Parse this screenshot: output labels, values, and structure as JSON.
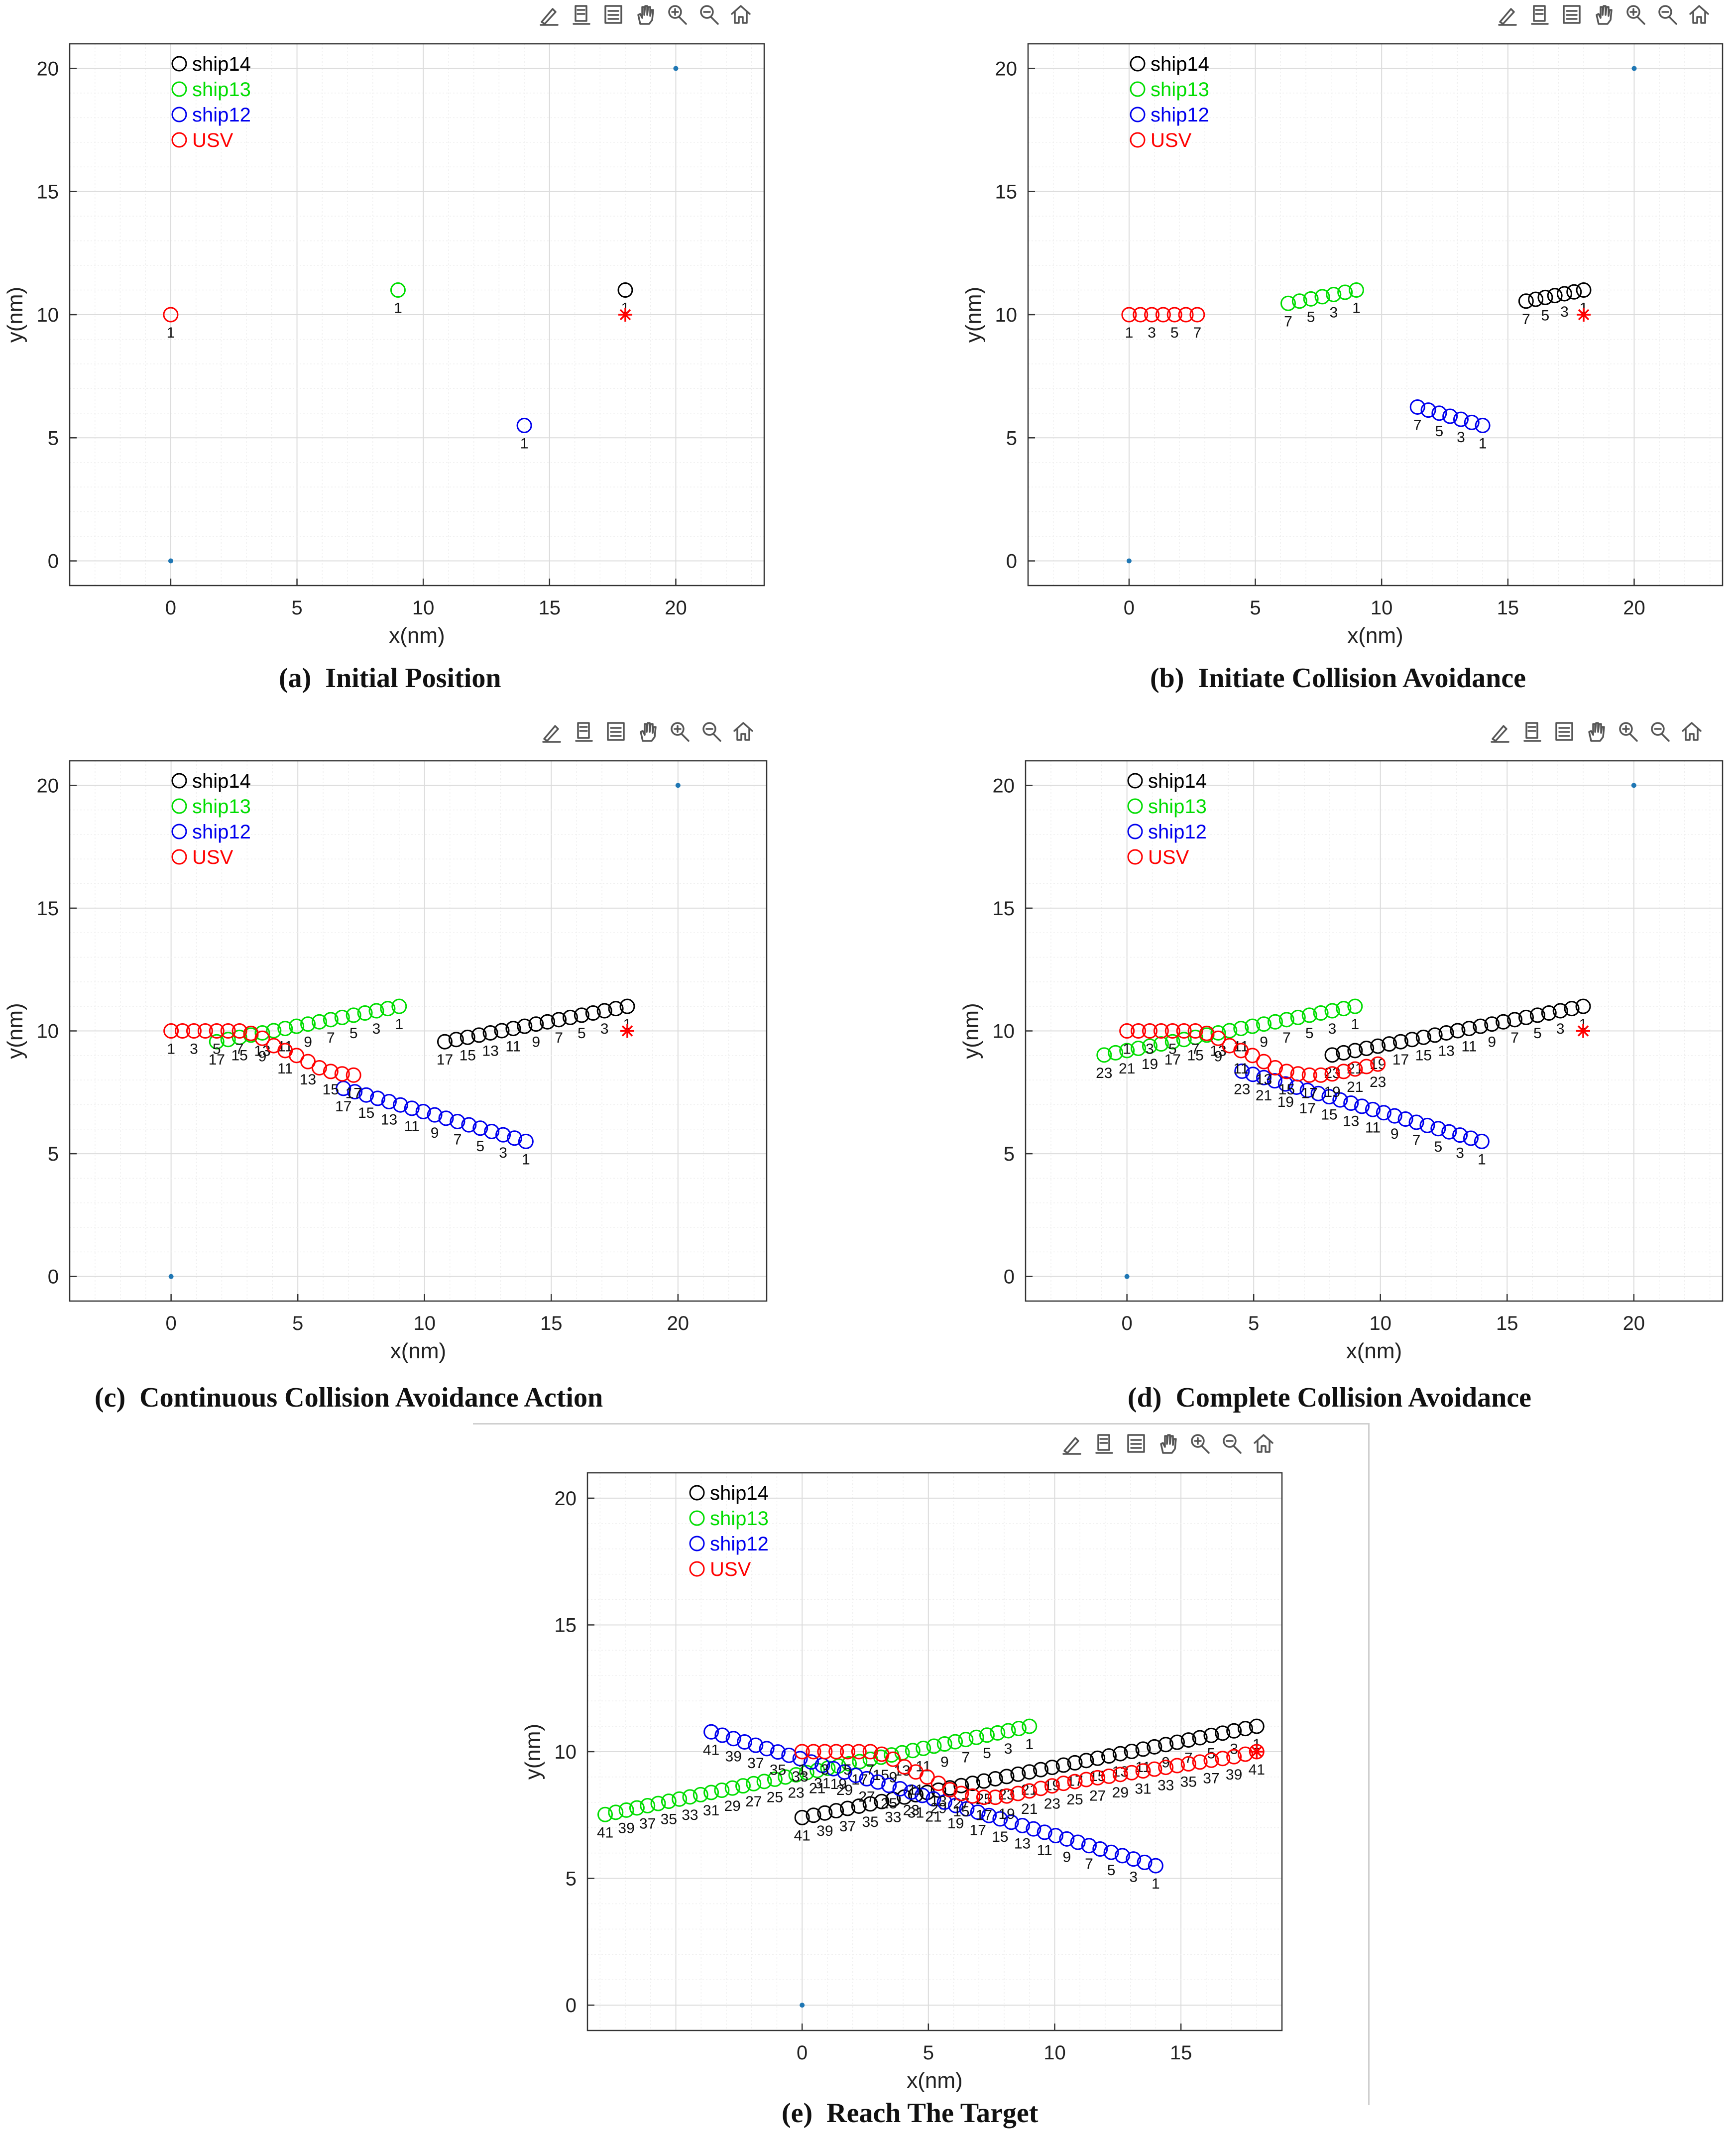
{
  "colors": {
    "ship14": "#000000",
    "ship13": "#00dd00",
    "ship12": "#0000ee",
    "USV": "#ff0000",
    "grid_major": "#dcdcdc",
    "grid_minor": "#efefef"
  },
  "toolbar_icons": [
    "brush-icon",
    "data-tip-icon",
    "legend-icon",
    "pan-icon",
    "zoom-in-icon",
    "zoom-out-icon",
    "home-icon"
  ],
  "captions": [
    {
      "label": "(a)",
      "title": "Initial Position"
    },
    {
      "label": "(b)",
      "title": "Initiate Collision Avoidance"
    },
    {
      "label": "(c)",
      "title": "Continuous Collision Avoidance Action"
    },
    {
      "label": "(d)",
      "title": "Complete Collision Avoidance"
    },
    {
      "label": "(e)",
      "title": "Reach The Target"
    }
  ],
  "chart_data": [
    {
      "type": "scatter",
      "title": "Initial Position",
      "xlabel": "x(nm)",
      "ylabel": "y(nm)",
      "xlim": [
        -4,
        23.5
      ],
      "ylim": [
        -1,
        21
      ],
      "xticks": [
        0,
        5,
        10,
        15,
        20
      ],
      "yticks": [
        0,
        5,
        10,
        15,
        20
      ],
      "grid": "on",
      "legend": [
        "ship14",
        "ship13",
        "ship12",
        "USV"
      ],
      "legend_location": "top-left",
      "start_point": [
        0,
        0
      ],
      "goal_point": [
        20,
        20
      ],
      "target_marker": [
        18,
        10
      ],
      "series": [
        {
          "name": "ship14",
          "start": [
            18,
            11
          ],
          "step": [
            -0.38,
            -0.05
          ],
          "count": 1
        },
        {
          "name": "ship13",
          "start": [
            9,
            11
          ],
          "step": [
            -0.38,
            -0.072
          ],
          "count": 1
        },
        {
          "name": "ship12",
          "start": [
            14,
            5.5
          ],
          "step": [
            -0.38,
            0.123
          ],
          "count": 1
        },
        {
          "name": "USV",
          "points": [
            [
              0,
              10
            ]
          ]
        }
      ]
    },
    {
      "type": "scatter",
      "title": "Initiate Collision Avoidance",
      "xlabel": "x(nm)",
      "ylabel": "y(nm)",
      "xlim": [
        -4,
        23.5
      ],
      "ylim": [
        -1,
        21
      ],
      "xticks": [
        0,
        5,
        10,
        15,
        20
      ],
      "yticks": [
        0,
        5,
        10,
        15,
        20
      ],
      "grid": "on",
      "legend": [
        "ship14",
        "ship13",
        "ship12",
        "USV"
      ],
      "legend_location": "top-left",
      "start_point": [
        0,
        0
      ],
      "goal_point": [
        20,
        20
      ],
      "target_marker": [
        18,
        10
      ],
      "series": [
        {
          "name": "ship14",
          "start": [
            18,
            11
          ],
          "step": [
            -0.38,
            -0.075
          ],
          "count": 7
        },
        {
          "name": "ship13",
          "start": [
            9,
            11
          ],
          "step": [
            -0.45,
            -0.09
          ],
          "count": 7
        },
        {
          "name": "ship12",
          "start": [
            14,
            5.5
          ],
          "step": [
            -0.43,
            0.125
          ],
          "count": 7
        },
        {
          "name": "USV",
          "points": [
            [
              0,
              10
            ],
            [
              0.45,
              10
            ],
            [
              0.9,
              10
            ],
            [
              1.35,
              10
            ],
            [
              1.8,
              10
            ],
            [
              2.25,
              10
            ],
            [
              2.7,
              10
            ]
          ]
        }
      ]
    },
    {
      "type": "scatter",
      "title": "Continuous Collision Avoidance Action",
      "xlabel": "x(nm)",
      "ylabel": "y(nm)",
      "xlim": [
        -4,
        23.5
      ],
      "ylim": [
        -1,
        21
      ],
      "xticks": [
        0,
        5,
        10,
        15,
        20
      ],
      "yticks": [
        0,
        5,
        10,
        15,
        20
      ],
      "grid": "on",
      "legend": [
        "ship14",
        "ship13",
        "ship12",
        "USV"
      ],
      "legend_location": "top-left",
      "start_point": [
        0,
        0
      ],
      "goal_point": [
        20,
        20
      ],
      "target_marker": [
        18,
        10
      ],
      "series": [
        {
          "name": "ship14",
          "start": [
            18,
            11
          ],
          "step": [
            -0.45,
            -0.09
          ],
          "count": 17
        },
        {
          "name": "ship13",
          "start": [
            9,
            11
          ],
          "step": [
            -0.45,
            -0.09
          ],
          "count": 17
        },
        {
          "name": "ship12",
          "start": [
            14,
            5.5
          ],
          "step": [
            -0.45,
            0.135
          ],
          "count": 17
        },
        {
          "name": "USV",
          "points": [
            [
              0,
              10
            ],
            [
              0.45,
              10
            ],
            [
              0.9,
              10
            ],
            [
              1.35,
              10
            ],
            [
              1.8,
              10
            ],
            [
              2.25,
              10
            ],
            [
              2.7,
              10
            ],
            [
              3.15,
              9.9
            ],
            [
              3.6,
              9.7
            ],
            [
              4.05,
              9.4
            ],
            [
              4.5,
              9.2
            ],
            [
              4.95,
              9.0
            ],
            [
              5.4,
              8.75
            ],
            [
              5.85,
              8.5
            ],
            [
              6.3,
              8.35
            ],
            [
              6.75,
              8.25
            ],
            [
              7.2,
              8.2
            ]
          ]
        }
      ]
    },
    {
      "type": "scatter",
      "title": "Complete Collision Avoidance",
      "xlabel": "x(nm)",
      "ylabel": "y(nm)",
      "xlim": [
        -4,
        23.5
      ],
      "ylim": [
        -1,
        21
      ],
      "xticks": [
        0,
        5,
        10,
        15,
        20
      ],
      "yticks": [
        0,
        5,
        10,
        15,
        20
      ],
      "grid": "on",
      "legend": [
        "ship14",
        "ship13",
        "ship12",
        "USV"
      ],
      "legend_location": "top-left",
      "start_point": [
        0,
        0
      ],
      "goal_point": [
        20,
        20
      ],
      "target_marker": [
        18,
        10
      ],
      "series": [
        {
          "name": "ship14",
          "start": [
            18,
            11
          ],
          "step": [
            -0.45,
            -0.09
          ],
          "count": 23
        },
        {
          "name": "ship13",
          "start": [
            9,
            11
          ],
          "step": [
            -0.45,
            -0.09
          ],
          "count": 23
        },
        {
          "name": "ship12",
          "start": [
            14,
            5.5
          ],
          "step": [
            -0.43,
            0.13
          ],
          "count": 23
        },
        {
          "name": "USV",
          "points": [
            [
              0,
              10
            ],
            [
              0.45,
              10
            ],
            [
              0.9,
              10
            ],
            [
              1.35,
              10
            ],
            [
              1.8,
              10
            ],
            [
              2.25,
              10
            ],
            [
              2.7,
              10
            ],
            [
              3.15,
              9.9
            ],
            [
              3.6,
              9.7
            ],
            [
              4.05,
              9.4
            ],
            [
              4.5,
              9.2
            ],
            [
              4.95,
              9.0
            ],
            [
              5.4,
              8.75
            ],
            [
              5.85,
              8.5
            ],
            [
              6.3,
              8.35
            ],
            [
              6.75,
              8.25
            ],
            [
              7.2,
              8.2
            ],
            [
              7.65,
              8.2
            ],
            [
              8.1,
              8.25
            ],
            [
              8.55,
              8.35
            ],
            [
              9.0,
              8.45
            ],
            [
              9.45,
              8.55
            ],
            [
              9.9,
              8.65
            ]
          ]
        }
      ]
    },
    {
      "type": "scatter",
      "title": "Reach The Target",
      "xlabel": "x(nm)",
      "ylabel": "y(nm)",
      "xlim": [
        -8.5,
        19
      ],
      "ylim": [
        -1,
        21
      ],
      "xticks": [
        0,
        5,
        10,
        15
      ],
      "yticks": [
        0,
        5,
        10,
        15,
        20
      ],
      "grid": "on",
      "legend": [
        "ship14",
        "ship13",
        "ship12",
        "USV"
      ],
      "legend_location": "top-left",
      "start_point": [
        0,
        0
      ],
      "target_marker": [
        18,
        10
      ],
      "series": [
        {
          "name": "ship14",
          "start": [
            18,
            11
          ],
          "step": [
            -0.45,
            -0.09
          ],
          "count": 41
        },
        {
          "name": "ship13",
          "start": [
            9,
            11
          ],
          "step": [
            -0.42,
            -0.087
          ],
          "count": 41
        },
        {
          "name": "ship12",
          "start": [
            14,
            5.5
          ],
          "step": [
            -0.44,
            0.132
          ],
          "count": 41
        },
        {
          "name": "USV",
          "points": [
            [
              0,
              10
            ],
            [
              0.45,
              10
            ],
            [
              0.9,
              10
            ],
            [
              1.35,
              10
            ],
            [
              1.8,
              10
            ],
            [
              2.25,
              10
            ],
            [
              2.7,
              10
            ],
            [
              3.15,
              9.9
            ],
            [
              3.6,
              9.7
            ],
            [
              4.05,
              9.4
            ],
            [
              4.5,
              9.2
            ],
            [
              4.95,
              9.0
            ],
            [
              5.4,
              8.75
            ],
            [
              5.85,
              8.5
            ],
            [
              6.3,
              8.35
            ],
            [
              6.75,
              8.25
            ],
            [
              7.2,
              8.2
            ],
            [
              7.65,
              8.2
            ],
            [
              8.1,
              8.25
            ],
            [
              8.55,
              8.35
            ],
            [
              9.0,
              8.45
            ],
            [
              9.45,
              8.55
            ],
            [
              9.9,
              8.65
            ],
            [
              10.35,
              8.75
            ],
            [
              10.8,
              8.82
            ],
            [
              11.25,
              8.9
            ],
            [
              11.7,
              8.97
            ],
            [
              12.15,
              9.03
            ],
            [
              12.6,
              9.1
            ],
            [
              13.05,
              9.17
            ],
            [
              13.5,
              9.24
            ],
            [
              13.95,
              9.31
            ],
            [
              14.4,
              9.38
            ],
            [
              14.85,
              9.45
            ],
            [
              15.3,
              9.52
            ],
            [
              15.75,
              9.59
            ],
            [
              16.2,
              9.66
            ],
            [
              16.65,
              9.73
            ],
            [
              17.1,
              9.8
            ],
            [
              17.55,
              9.9
            ],
            [
              18.0,
              10.0
            ]
          ]
        }
      ]
    }
  ]
}
